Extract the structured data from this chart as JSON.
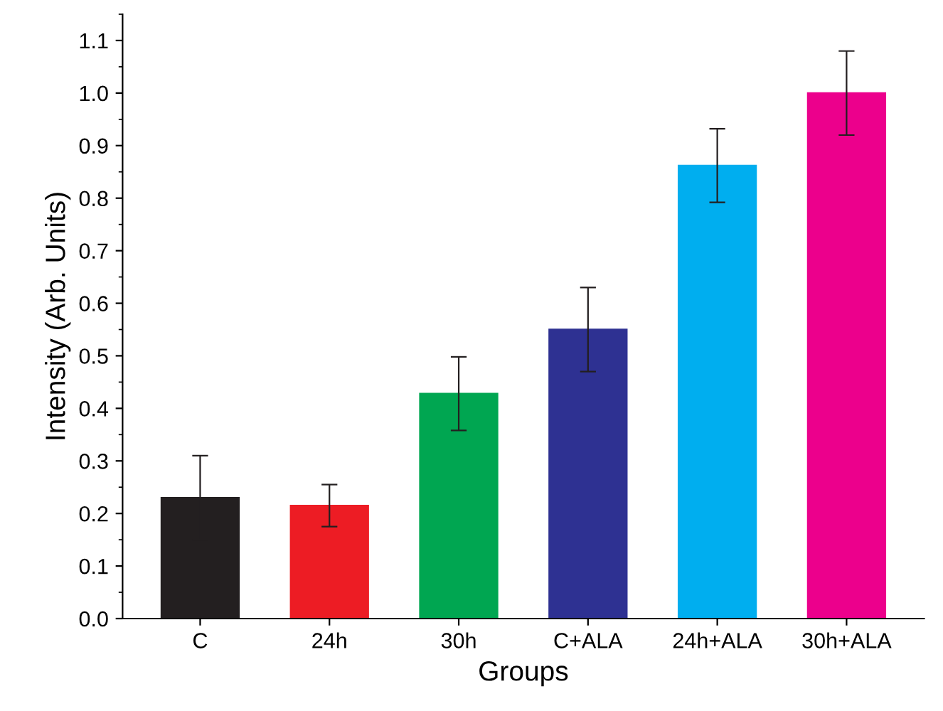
{
  "chart_data": {
    "type": "bar",
    "xlabel": "Groups",
    "ylabel": "Intensity (Arb. Units)",
    "categories": [
      "C",
      "24h",
      "30h",
      "C+ALA",
      "24h+ALA",
      "30h+ALA"
    ],
    "values": [
      0.23,
      0.215,
      0.428,
      0.55,
      0.862,
      1.0
    ],
    "errors": [
      0.08,
      0.04,
      0.07,
      0.08,
      0.07,
      0.08
    ],
    "colors": [
      "#231f20",
      "#ed1c24",
      "#00a651",
      "#2e3192",
      "#00aeef",
      "#ec008c"
    ],
    "ylim": [
      0,
      1.15
    ],
    "yticks": [
      {
        "value": 0,
        "label": "0.0"
      },
      0.1,
      0.2,
      0.3,
      0.4,
      0.5,
      0.6,
      0.7,
      0.8,
      0.9,
      {
        "value": 1,
        "label": "1.0"
      },
      1.1
    ],
    "grid": false,
    "legend": false
  }
}
